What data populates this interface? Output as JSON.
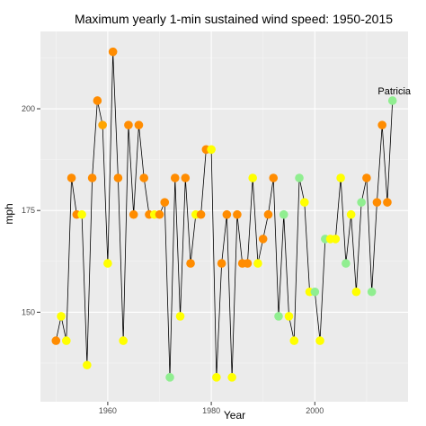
{
  "chart_data": {
    "type": "line",
    "title": "Maximum yearly 1-min sustained wind speed: 1950-2015",
    "xlabel": "Year",
    "ylabel": "mph",
    "xlim": [
      1947,
      2018
    ],
    "ylim": [
      128,
      219
    ],
    "x_ticks": [
      1960,
      1980,
      2000
    ],
    "y_ticks": [
      150,
      175,
      200
    ],
    "x_tick_labels": [
      "1960",
      "1980",
      "2000"
    ],
    "y_tick_labels": [
      "150",
      "175",
      "200"
    ],
    "grid": true,
    "panel_background": "#ebebeb",
    "grid_major_color": "#ffffff",
    "grid_minor_color": "#f5f5f5",
    "line_color": "#000000",
    "color_scale": {
      "lightgreen": "#90ee90",
      "yellow": "#ffff00",
      "orange": "#ffa500",
      "darkorange": "#ff8c00"
    },
    "points": [
      {
        "x": 1950,
        "y": 143,
        "color": "darkorange"
      },
      {
        "x": 1951,
        "y": 149,
        "color": "yellow"
      },
      {
        "x": 1952,
        "y": 143,
        "color": "yellow"
      },
      {
        "x": 1953,
        "y": 183,
        "color": "darkorange"
      },
      {
        "x": 1954,
        "y": 174,
        "color": "darkorange"
      },
      {
        "x": 1955,
        "y": 174,
        "color": "yellow"
      },
      {
        "x": 1956,
        "y": 137,
        "color": "yellow"
      },
      {
        "x": 1957,
        "y": 183,
        "color": "darkorange"
      },
      {
        "x": 1958,
        "y": 202,
        "color": "darkorange"
      },
      {
        "x": 1959,
        "y": 196,
        "color": "orange"
      },
      {
        "x": 1960,
        "y": 162,
        "color": "yellow"
      },
      {
        "x": 1961,
        "y": 214,
        "color": "darkorange"
      },
      {
        "x": 1962,
        "y": 183,
        "color": "darkorange"
      },
      {
        "x": 1963,
        "y": 143,
        "color": "yellow"
      },
      {
        "x": 1964,
        "y": 196,
        "color": "darkorange"
      },
      {
        "x": 1965,
        "y": 174,
        "color": "darkorange"
      },
      {
        "x": 1966,
        "y": 196,
        "color": "darkorange"
      },
      {
        "x": 1967,
        "y": 183,
        "color": "darkorange"
      },
      {
        "x": 1968,
        "y": 174,
        "color": "darkorange"
      },
      {
        "x": 1969,
        "y": 174,
        "color": "yellow"
      },
      {
        "x": 1970,
        "y": 174,
        "color": "darkorange"
      },
      {
        "x": 1971,
        "y": 177,
        "color": "darkorange"
      },
      {
        "x": 1972,
        "y": 134,
        "color": "lightgreen"
      },
      {
        "x": 1973,
        "y": 183,
        "color": "darkorange"
      },
      {
        "x": 1974,
        "y": 149,
        "color": "yellow"
      },
      {
        "x": 1975,
        "y": 183,
        "color": "darkorange"
      },
      {
        "x": 1976,
        "y": 162,
        "color": "darkorange"
      },
      {
        "x": 1977,
        "y": 174,
        "color": "yellow"
      },
      {
        "x": 1978,
        "y": 174,
        "color": "darkorange"
      },
      {
        "x": 1979,
        "y": 190,
        "color": "darkorange"
      },
      {
        "x": 1980,
        "y": 190,
        "color": "yellow"
      },
      {
        "x": 1981,
        "y": 134,
        "color": "yellow"
      },
      {
        "x": 1982,
        "y": 162,
        "color": "darkorange"
      },
      {
        "x": 1983,
        "y": 174,
        "color": "darkorange"
      },
      {
        "x": 1984,
        "y": 134,
        "color": "yellow"
      },
      {
        "x": 1985,
        "y": 174,
        "color": "darkorange"
      },
      {
        "x": 1986,
        "y": 162,
        "color": "darkorange"
      },
      {
        "x": 1987,
        "y": 162,
        "color": "darkorange"
      },
      {
        "x": 1988,
        "y": 183,
        "color": "yellow"
      },
      {
        "x": 1989,
        "y": 162,
        "color": "yellow"
      },
      {
        "x": 1990,
        "y": 168,
        "color": "darkorange"
      },
      {
        "x": 1991,
        "y": 174,
        "color": "darkorange"
      },
      {
        "x": 1992,
        "y": 183,
        "color": "darkorange"
      },
      {
        "x": 1993,
        "y": 149,
        "color": "lightgreen"
      },
      {
        "x": 1994,
        "y": 174,
        "color": "lightgreen"
      },
      {
        "x": 1995,
        "y": 149,
        "color": "yellow"
      },
      {
        "x": 1996,
        "y": 143,
        "color": "yellow"
      },
      {
        "x": 1997,
        "y": 183,
        "color": "lightgreen"
      },
      {
        "x": 1998,
        "y": 177,
        "color": "yellow"
      },
      {
        "x": 1999,
        "y": 155,
        "color": "yellow"
      },
      {
        "x": 2000,
        "y": 155,
        "color": "lightgreen"
      },
      {
        "x": 2001,
        "y": 143,
        "color": "yellow"
      },
      {
        "x": 2002,
        "y": 168,
        "color": "lightgreen"
      },
      {
        "x": 2003,
        "y": 168,
        "color": "yellow"
      },
      {
        "x": 2004,
        "y": 168,
        "color": "yellow"
      },
      {
        "x": 2005,
        "y": 183,
        "color": "yellow"
      },
      {
        "x": 2006,
        "y": 162,
        "color": "lightgreen"
      },
      {
        "x": 2007,
        "y": 174,
        "color": "yellow"
      },
      {
        "x": 2008,
        "y": 155,
        "color": "yellow"
      },
      {
        "x": 2009,
        "y": 177,
        "color": "lightgreen"
      },
      {
        "x": 2010,
        "y": 183,
        "color": "darkorange"
      },
      {
        "x": 2011,
        "y": 155,
        "color": "lightgreen"
      },
      {
        "x": 2012,
        "y": 177,
        "color": "darkorange"
      },
      {
        "x": 2013,
        "y": 196,
        "color": "darkorange"
      },
      {
        "x": 2014,
        "y": 177,
        "color": "darkorange"
      },
      {
        "x": 2015,
        "y": 202,
        "color": "lightgreen"
      }
    ],
    "annotations": [
      {
        "text": "Patricia",
        "x": 2015,
        "y": 202
      }
    ]
  }
}
